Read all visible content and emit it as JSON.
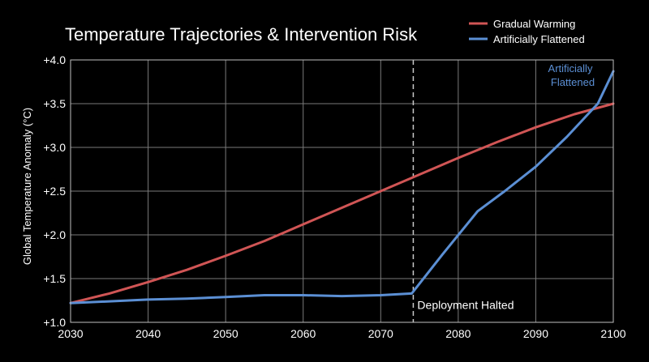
{
  "chart_data": {
    "type": "line",
    "title": "Temperature Trajectories & Intervention Risk",
    "xlabel": "",
    "ylabel": "Global Temperature Anomaly (°C)",
    "xlim": [
      2030,
      2100
    ],
    "ylim": [
      1.0,
      4.0
    ],
    "xticks": [
      2030,
      2040,
      2050,
      2060,
      2070,
      2080,
      2090,
      2100
    ],
    "xtick_labels": [
      "2030",
      "2040",
      "2050",
      "2060",
      "2070",
      "2080",
      "2090",
      "2100"
    ],
    "yticks": [
      1.0,
      1.5,
      2.0,
      2.5,
      3.0,
      3.5,
      4.0
    ],
    "ytick_labels": [
      "+1.0",
      "+1.5",
      "+2.0",
      "+2.5",
      "+3.0",
      "+3.5",
      "+4.0"
    ],
    "grid": true,
    "legend_position": "top-right",
    "series": [
      {
        "name": "Gradual Warming",
        "color": "#d05555",
        "x": [
          2030,
          2035,
          2040,
          2045,
          2050,
          2055,
          2060,
          2065,
          2070,
          2075,
          2080,
          2085,
          2090,
          2095,
          2100
        ],
        "y": [
          1.22,
          1.33,
          1.46,
          1.6,
          1.76,
          1.93,
          2.12,
          2.31,
          2.5,
          2.69,
          2.88,
          3.06,
          3.23,
          3.38,
          3.5
        ]
      },
      {
        "name": "Artificially Flattened",
        "color": "#5b8fd4",
        "x": [
          2030,
          2035,
          2040,
          2045,
          2050,
          2055,
          2060,
          2065,
          2070,
          2074,
          2078,
          2082.5,
          2086,
          2090,
          2094,
          2098,
          2100
        ],
        "y": [
          1.22,
          1.24,
          1.26,
          1.27,
          1.29,
          1.31,
          1.31,
          1.3,
          1.31,
          1.33,
          1.78,
          2.27,
          2.5,
          2.78,
          3.12,
          3.5,
          3.87
        ]
      }
    ],
    "vline": {
      "x": 2074.2,
      "label": "Deployment Halted"
    },
    "annotation_blue": {
      "line1": "Artificially",
      "line2": "Flattened"
    }
  }
}
